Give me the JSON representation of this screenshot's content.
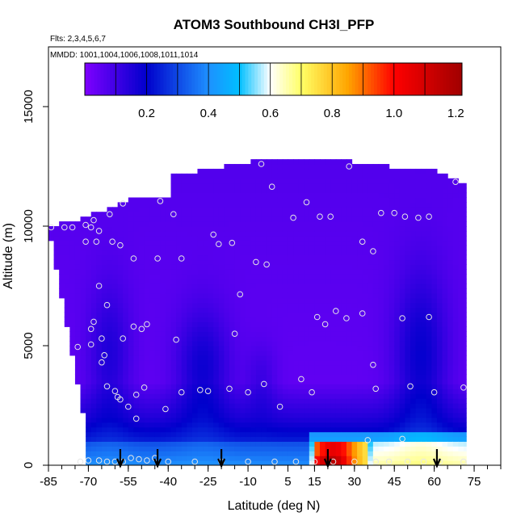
{
  "chart_data": {
    "type": "heatmap",
    "title": "ATOM3 Southbound CH3I_PFP",
    "subtitle_flights": "Flts: 2,3,4,5,6,7",
    "subtitle_dates": "MMDD: 1001,1004,1006,1008,1011,1014",
    "xlabel": "Latitude (deg N)",
    "ylabel": "Altitude (m)",
    "xlim": [
      -85,
      85
    ],
    "ylim": [
      0,
      17500
    ],
    "x_ticks": [
      "-85",
      "-70",
      "-55",
      "-40",
      "-25",
      "-10",
      "5",
      "15",
      "30",
      "45",
      "60",
      "75"
    ],
    "x_tick_values": [
      -85,
      -70,
      -55,
      -40,
      -25,
      -10,
      5,
      15,
      30,
      45,
      60,
      75
    ],
    "x_minor_step": 5,
    "y_ticks": [
      "0",
      "5000",
      "10000",
      "15000"
    ],
    "y_tick_values": [
      0,
      5000,
      10000,
      15000
    ],
    "colorbar": {
      "range": [
        0.0,
        1.22
      ],
      "tick_labels": [
        "0.2",
        "0.4",
        "0.6",
        "0.8",
        "1.0",
        "1.2"
      ],
      "tick_values": [
        0.2,
        0.4,
        0.6,
        0.8,
        1.0,
        1.2
      ],
      "colors": [
        "#7f00ff",
        "#0000cc",
        "#1e90ff",
        "#00bfff",
        "#ffffff",
        "#ffff66",
        "#ffa500",
        "#ff0000",
        "#a00000"
      ],
      "color_stops": [
        0.0,
        0.2,
        0.4,
        0.5,
        0.6,
        0.7,
        0.85,
        1.0,
        1.22
      ]
    },
    "profile_latitudes": [
      -58,
      -44,
      -20,
      20,
      61
    ],
    "samples": [
      [
        -84,
        9950
      ],
      [
        -79,
        9950
      ],
      [
        -76,
        9950
      ],
      [
        -71,
        10050
      ],
      [
        -69,
        9950
      ],
      [
        -68,
        10250
      ],
      [
        -66,
        9800
      ],
      [
        -62,
        10500
      ],
      [
        -57,
        10950
      ],
      [
        -43,
        11050
      ],
      [
        -38,
        10500
      ],
      [
        -23,
        9650
      ],
      [
        -21,
        9250
      ],
      [
        -16,
        9300
      ],
      [
        -5,
        12600
      ],
      [
        -1,
        11650
      ],
      [
        7,
        10350
      ],
      [
        12,
        11000
      ],
      [
        17,
        10400
      ],
      [
        21,
        10400
      ],
      [
        28,
        12500
      ],
      [
        33,
        9350
      ],
      [
        37,
        8950
      ],
      [
        40,
        10550
      ],
      [
        45,
        10550
      ],
      [
        49,
        10400
      ],
      [
        54,
        10350
      ],
      [
        58,
        10400
      ],
      [
        68,
        11850
      ],
      [
        -71,
        9350
      ],
      [
        -67,
        9350
      ],
      [
        -61,
        9350
      ],
      [
        -58,
        9200
      ],
      [
        -53,
        8650
      ],
      [
        -44,
        8650
      ],
      [
        -35,
        8650
      ],
      [
        -13,
        7150
      ],
      [
        -7,
        8500
      ],
      [
        -3,
        8400
      ],
      [
        -66,
        7500
      ],
      [
        -63,
        6700
      ],
      [
        -68,
        6000
      ],
      [
        -69,
        5700
      ],
      [
        -65,
        5300
      ],
      [
        -57,
        5300
      ],
      [
        -53,
        5800
      ],
      [
        -50,
        5700
      ],
      [
        -48,
        5900
      ],
      [
        -37,
        5250
      ],
      [
        -74,
        4950
      ],
      [
        -69,
        5050
      ],
      [
        -64,
        4600
      ],
      [
        -65,
        4300
      ],
      [
        -63,
        3300
      ],
      [
        -60,
        3100
      ],
      [
        -59,
        2850
      ],
      [
        -58,
        2750
      ],
      [
        -52,
        2950
      ],
      [
        -49,
        3250
      ],
      [
        -55,
        2450
      ],
      [
        -52,
        1950
      ],
      [
        -41,
        2350
      ],
      [
        -25,
        3100
      ],
      [
        -17,
        3200
      ],
      [
        -10,
        3050
      ],
      [
        -4,
        3400
      ],
      [
        2,
        2450
      ],
      [
        10,
        3600
      ],
      [
        14,
        3050
      ],
      [
        16,
        6200
      ],
      [
        19,
        5900
      ],
      [
        23,
        6450
      ],
      [
        27,
        6150
      ],
      [
        33,
        6350
      ],
      [
        37,
        4200
      ],
      [
        38,
        3200
      ],
      [
        48,
        6150
      ],
      [
        51,
        3300
      ],
      [
        58,
        6200
      ],
      [
        60,
        3050
      ],
      [
        71,
        3250
      ],
      [
        -15,
        5500
      ],
      [
        -35,
        3050
      ],
      [
        35,
        1050
      ],
      [
        48,
        1100
      ],
      [
        -28,
        3150
      ],
      [
        -73,
        150
      ],
      [
        -70,
        200
      ],
      [
        -66,
        200
      ],
      [
        -63,
        150
      ],
      [
        -60,
        150
      ],
      [
        -57,
        150
      ],
      [
        -54,
        300
      ],
      [
        -51,
        250
      ],
      [
        -48,
        200
      ],
      [
        -45,
        300
      ],
      [
        -40,
        150
      ],
      [
        -30,
        150
      ],
      [
        -20,
        150
      ],
      [
        -10,
        150
      ],
      [
        0,
        150
      ],
      [
        8,
        150
      ],
      [
        15,
        150
      ],
      [
        22,
        150
      ],
      [
        30,
        150
      ],
      [
        38,
        150
      ],
      [
        43,
        150
      ],
      [
        50,
        150
      ],
      [
        56,
        150
      ],
      [
        62,
        150
      ],
      [
        71,
        150
      ]
    ]
  }
}
